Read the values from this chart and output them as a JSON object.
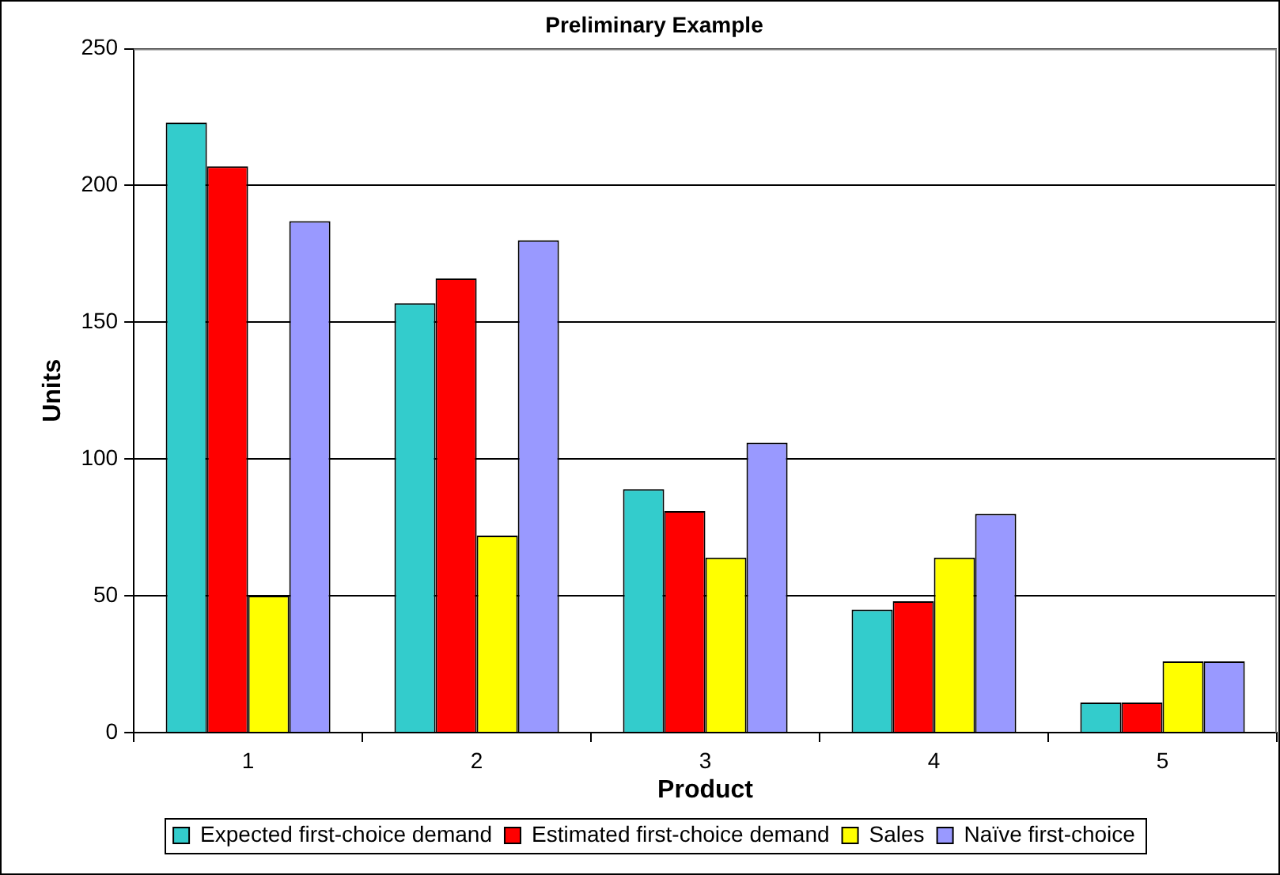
{
  "chart_data": {
    "type": "bar",
    "title": "Preliminary Example",
    "xlabel": "Product",
    "ylabel": "Units",
    "categories": [
      "1",
      "2",
      "3",
      "4",
      "5"
    ],
    "series": [
      {
        "name": "Expected first-choice demand",
        "color": "#33cccc",
        "values": [
          223,
          157,
          89,
          45,
          11
        ]
      },
      {
        "name": "Estimated first-choice demand",
        "color": "#ff0000",
        "values": [
          207,
          166,
          81,
          48,
          11
        ]
      },
      {
        "name": "Sales",
        "color": "#ffff00",
        "values": [
          50,
          72,
          64,
          64,
          26
        ]
      },
      {
        "name": "Naïve first-choice",
        "color": "#9999ff",
        "values": [
          187,
          180,
          106,
          80,
          26
        ]
      }
    ],
    "ylim": [
      0,
      250
    ],
    "yticks": [
      0,
      50,
      100,
      150,
      200,
      250
    ],
    "grid": "y",
    "legend": "bottom"
  }
}
